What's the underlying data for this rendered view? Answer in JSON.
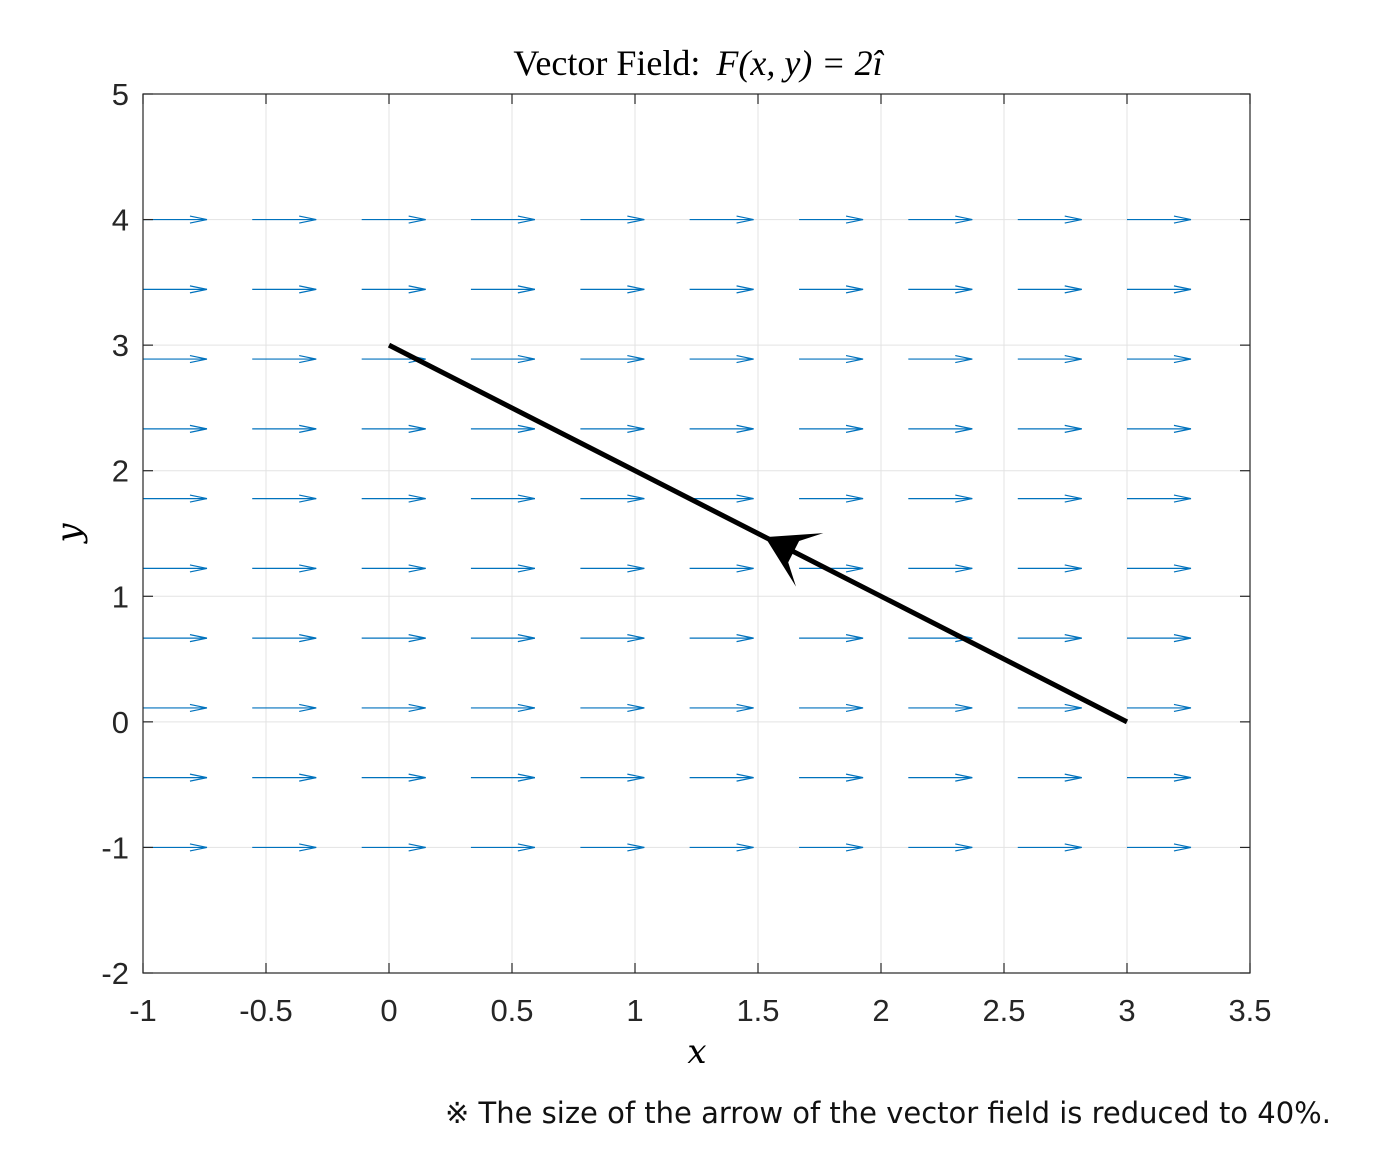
{
  "chart_data": {
    "type": "quiver",
    "title_prefix": "Vector Field:",
    "title_math": "F(x, y) = 2î",
    "xlabel": "x",
    "ylabel": "y",
    "xlim": [
      -1,
      3.5
    ],
    "ylim": [
      -2,
      5
    ],
    "xticks": [
      -1,
      -0.5,
      0,
      0.5,
      1,
      1.5,
      2,
      2.5,
      3,
      3.5
    ],
    "xtick_labels": [
      "-1",
      "-0.5",
      "0",
      "0.5",
      "1",
      "1.5",
      "2",
      "2.5",
      "3",
      "3.5"
    ],
    "yticks": [
      -2,
      -1,
      0,
      1,
      2,
      3,
      4,
      5
    ],
    "ytick_labels": [
      "-2",
      "-1",
      "0",
      "1",
      "2",
      "3",
      "4",
      "5"
    ],
    "grid": true,
    "vector_field": {
      "F": [
        2,
        0
      ],
      "x_positions": [
        -1,
        -0.556,
        -0.111,
        0.333,
        0.778,
        1.222,
        1.667,
        2.111,
        2.556,
        3.0
      ],
      "y_positions": [
        -1,
        -0.444,
        0.111,
        0.667,
        1.222,
        1.778,
        2.333,
        2.889,
        3.444,
        4.0
      ],
      "display_length_x": 0.26,
      "color": "#0072BD"
    },
    "path": {
      "start": [
        3,
        0
      ],
      "end": [
        0,
        3
      ],
      "direction_marker_at": [
        1.5,
        1.5
      ],
      "color": "#000000"
    }
  },
  "note": "※ The size of the arrow of the vector field is reduced to 40%."
}
